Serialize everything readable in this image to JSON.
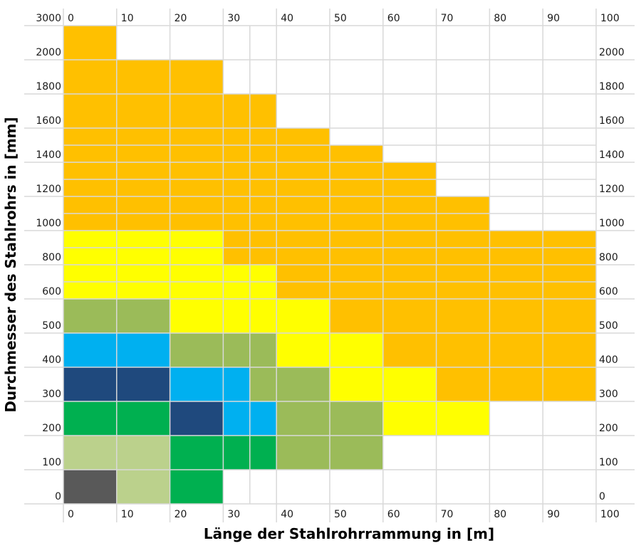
{
  "chart_data": {
    "type": "heatmap",
    "title": "",
    "xlabel": "Länge der Stahlrohrrammung in [m]",
    "ylabel": "Durchmesser des Stahlrohrs in [mm]",
    "x_tick_labels": [
      "0",
      "10",
      "20",
      "30",
      "40",
      "50",
      "60",
      "70",
      "80",
      "90",
      "100"
    ],
    "x_edges": [
      0,
      10,
      20,
      30,
      35,
      40,
      50,
      60,
      70,
      80,
      90,
      100
    ],
    "y_tick_labels_left": [
      "3000",
      "2000",
      "1800",
      "1600",
      "1400",
      "1200",
      "1000",
      "800",
      "600",
      "500",
      "400",
      "300",
      "200",
      "100",
      "0"
    ],
    "y_tick_labels_right": [
      "2000",
      "1800",
      "1600",
      "1400",
      "1200",
      "1000",
      "800",
      "600",
      "500",
      "400",
      "300",
      "200",
      "100",
      "0"
    ],
    "y_bands": [
      {
        "label": "2000",
        "rows": 1
      },
      {
        "label": "1800",
        "rows": 1
      },
      {
        "label": "1600",
        "rows": 1
      },
      {
        "label": "1400",
        "rows": 2
      },
      {
        "label": "1200",
        "rows": 2
      },
      {
        "label": "1000",
        "rows": 2
      },
      {
        "label": "800",
        "rows": 2
      },
      {
        "label": "600",
        "rows": 2
      },
      {
        "label": "500",
        "rows": 1
      },
      {
        "label": "400",
        "rows": 1
      },
      {
        "label": "300",
        "rows": 1
      },
      {
        "label": "200",
        "rows": 1
      },
      {
        "label": "100",
        "rows": 1
      },
      {
        "label": "0",
        "rows": 1
      }
    ],
    "colors": {
      "O": "#FFC000",
      "Y": "#FFFF00",
      "G": "#9BBB59",
      "B": "#00B0F0",
      "N": "#1F497D",
      "E": "#00B050",
      "L": "#BBD18C",
      "D": "#595959"
    },
    "grid_color": "#D9D9D9",
    "cells": [
      [
        "O",
        "",
        "",
        "",
        "",
        "",
        "",
        "",
        "",
        "",
        ""
      ],
      [
        "O",
        "O",
        "O",
        "",
        "",
        "",
        "",
        "",
        "",
        "",
        ""
      ],
      [
        "O",
        "O",
        "O",
        "O",
        "O",
        "",
        "",
        "",
        "",
        "",
        ""
      ],
      [
        "O",
        "O",
        "O",
        "O",
        "O",
        "O",
        "",
        "",
        "",
        "",
        ""
      ],
      [
        "O",
        "O",
        "O",
        "O",
        "O",
        "O",
        "O",
        "",
        "",
        "",
        ""
      ],
      [
        "O",
        "O",
        "O",
        "O",
        "O",
        "O",
        "O",
        "O",
        "",
        "",
        ""
      ],
      [
        "O",
        "O",
        "O",
        "O",
        "O",
        "O",
        "O",
        "O",
        "",
        "",
        ""
      ],
      [
        "O",
        "O",
        "O",
        "O",
        "O",
        "O",
        "O",
        "O",
        "O",
        "",
        ""
      ],
      [
        "O",
        "O",
        "O",
        "O",
        "O",
        "O",
        "O",
        "O",
        "O",
        "",
        ""
      ],
      [
        "Y",
        "Y",
        "Y",
        "O",
        "O",
        "O",
        "O",
        "O",
        "O",
        "O",
        "O"
      ],
      [
        "Y",
        "Y",
        "Y",
        "O",
        "O",
        "O",
        "O",
        "O",
        "O",
        "O",
        "O"
      ],
      [
        "Y",
        "Y",
        "Y",
        "Y",
        "Y",
        "O",
        "O",
        "O",
        "O",
        "O",
        "O"
      ],
      [
        "Y",
        "Y",
        "Y",
        "Y",
        "Y",
        "O",
        "O",
        "O",
        "O",
        "O",
        "O"
      ],
      [
        "G",
        "G",
        "Y",
        "Y",
        "Y",
        "Y",
        "O",
        "O",
        "O",
        "O",
        "O"
      ],
      [
        "B",
        "B",
        "G",
        "G",
        "G",
        "Y",
        "Y",
        "O",
        "O",
        "O",
        "O"
      ],
      [
        "N",
        "N",
        "B",
        "B",
        "G",
        "G",
        "Y",
        "Y",
        "O",
        "O",
        "O"
      ],
      [
        "E",
        "E",
        "N",
        "B",
        "B",
        "G",
        "G",
        "Y",
        "Y",
        "",
        ""
      ],
      [
        "L",
        "L",
        "E",
        "E",
        "E",
        "G",
        "G",
        "",
        "",
        "",
        ""
      ],
      [
        "D",
        "L",
        "E",
        "",
        "",
        "",
        "",
        "",
        "",
        "",
        ""
      ]
    ]
  }
}
